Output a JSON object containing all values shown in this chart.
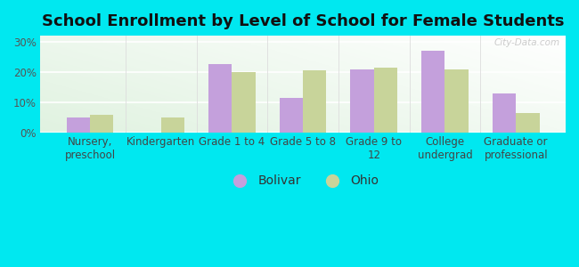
{
  "title": "School Enrollment by Level of School for Female Students",
  "categories": [
    "Nursery,\npreschool",
    "Kindergarten",
    "Grade 1 to 4",
    "Grade 5 to 8",
    "Grade 9 to\n12",
    "College\nundergrad",
    "Graduate or\nprofessional"
  ],
  "bolivar": [
    5.0,
    0.0,
    22.5,
    11.5,
    21.0,
    27.0,
    13.0
  ],
  "ohio": [
    6.0,
    5.0,
    20.0,
    20.5,
    21.5,
    21.0,
    6.5
  ],
  "bolivar_color": "#c4a0dc",
  "ohio_color": "#c8d49a",
  "background_outer": "#00e8f0",
  "ylabel_ticks": [
    "0%",
    "10%",
    "20%",
    "30%"
  ],
  "ytick_vals": [
    0,
    10,
    20,
    30
  ],
  "ylim": [
    0,
    32
  ],
  "legend_labels": [
    "Bolivar",
    "Ohio"
  ],
  "watermark": "City-Data.com",
  "title_fontsize": 13,
  "tick_fontsize": 8.5,
  "legend_fontsize": 10,
  "bar_width": 0.33
}
